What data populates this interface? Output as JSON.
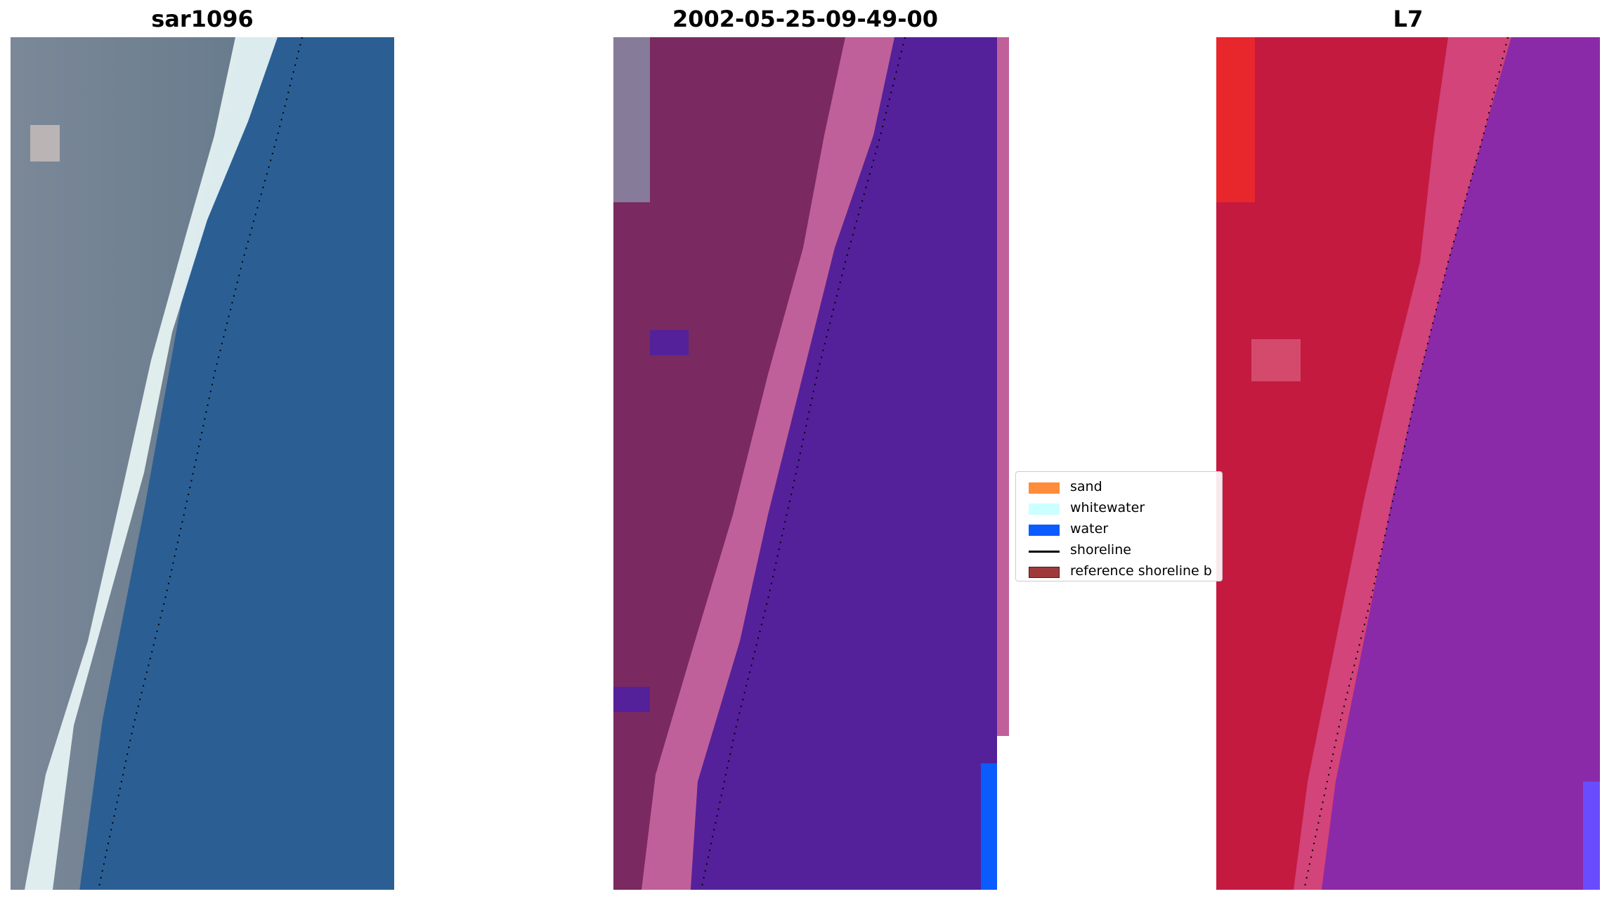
{
  "panels": [
    {
      "title": "sar1096"
    },
    {
      "title": "2002-05-25-09-49-00"
    },
    {
      "title": "L7"
    }
  ],
  "legend": {
    "items": [
      {
        "label": "sand",
        "kind": "patch",
        "color": "#ff8c3a"
      },
      {
        "label": "whitewater",
        "kind": "patch",
        "color": "#ccffff"
      },
      {
        "label": "water",
        "kind": "patch",
        "color": "#0a5cff"
      },
      {
        "label": "shoreline",
        "kind": "line",
        "color": "#000000"
      },
      {
        "label": "reference shoreline b",
        "kind": "patch",
        "color": "#a03a3a"
      }
    ]
  },
  "colors": {
    "rgb_land": "#6f7f92",
    "rgb_sand": "#e6f2f2",
    "rgb_water": "#2b5f94",
    "class_land": "#7a2a60",
    "class_sand": "#c0609a",
    "class_water": "#54219a",
    "class_edge": "#0a5cff",
    "ndwi_land": "#c41a40",
    "ndwi_sand": "#d2447a",
    "ndwi_water": "#8a2aa8"
  }
}
